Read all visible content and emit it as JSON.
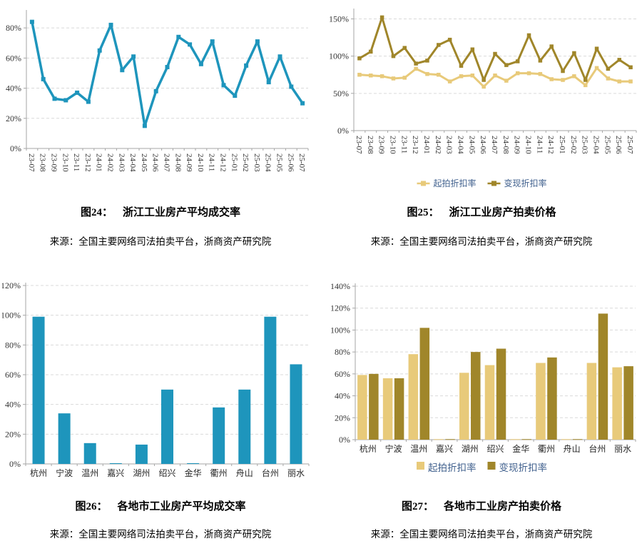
{
  "colors": {
    "blue": "#1e95bc",
    "light_gold": "#e8ca7a",
    "dark_gold": "#a0862a",
    "grid": "#d9d9d9",
    "axis": "#a6a6a6",
    "tick_text": "#333333",
    "legend_text": "#41618e"
  },
  "figures": [
    {
      "label": "图24：",
      "title": "浙江工业房产平均成交率",
      "source": "来源：全国主要网络司法拍卖平台，浙商资产研究院"
    },
    {
      "label": "图25：",
      "title": "浙江工业房产拍卖价格",
      "source": "来源：全国主要网络司法拍卖平台，浙商资产研究院"
    },
    {
      "label": "图26：",
      "title": "各地市工业房产平均成交率",
      "source": "来源：全国主要网络司法拍卖平台，浙商资产研究院"
    },
    {
      "label": "图27：",
      "title": "各地市工业房产拍卖价格",
      "source": "来源：全国主要网络司法拍卖平台，浙商资产研究院"
    }
  ],
  "chart_data": [
    {
      "id": "fig24",
      "type": "line",
      "title": "图24： 浙江工业房产平均成交率",
      "x": [
        "23-07",
        "23-08",
        "23-09",
        "23-10",
        "23-11",
        "23-12",
        "24-01",
        "24-02",
        "24-03",
        "24-04",
        "24-05",
        "24-06",
        "24-07",
        "24-08",
        "24-09",
        "24-10",
        "24-11",
        "24-12",
        "25-01",
        "25-02",
        "25-03",
        "25-04",
        "25-05",
        "25-06",
        "25-07"
      ],
      "series": [
        {
          "color_key": "blue",
          "values": [
            84,
            46,
            33,
            32,
            37,
            31,
            65,
            82,
            52,
            61,
            15,
            38,
            54,
            74,
            69,
            56,
            71,
            42,
            35,
            55,
            71,
            44,
            61,
            41,
            30
          ]
        }
      ],
      "ylim": [
        0,
        90
      ],
      "yticks": [
        0,
        20,
        40,
        60,
        80
      ],
      "grid": true,
      "legend": false
    },
    {
      "id": "fig25",
      "type": "line",
      "title": "图25： 浙江工业房产拍卖价格",
      "x": [
        "23-07",
        "23-08",
        "23-09",
        "23-10",
        "23-11",
        "23-12",
        "24-01",
        "24-02",
        "24-03",
        "24-04",
        "24-05",
        "24-06",
        "24-07",
        "24-08",
        "24-09",
        "24-10",
        "24-11",
        "24-12",
        "25-01",
        "25-02",
        "25-03",
        "25-04",
        "25-05",
        "25-06",
        "25-07"
      ],
      "series": [
        {
          "name": "起拍折扣率",
          "color_key": "light_gold",
          "values": [
            75,
            74,
            73,
            70,
            71,
            83,
            76,
            75,
            66,
            73,
            74,
            59,
            74,
            67,
            77,
            77,
            76,
            69,
            68,
            73,
            61,
            84,
            70,
            66,
            66
          ]
        },
        {
          "name": "变现折扣率",
          "color_key": "dark_gold",
          "values": [
            97,
            106,
            152,
            100,
            111,
            90,
            94,
            115,
            122,
            87,
            109,
            68,
            103,
            88,
            93,
            128,
            94,
            113,
            80,
            104,
            68,
            110,
            83,
            95,
            85
          ]
        }
      ],
      "ylim": [
        0,
        160
      ],
      "yticks": [
        0,
        50,
        100,
        150
      ],
      "grid": true,
      "legend": true,
      "legend_position": "bottom"
    },
    {
      "id": "fig26",
      "type": "bar",
      "title": "图26： 各地市工业房产平均成交率",
      "categories": [
        "杭州",
        "宁波",
        "温州",
        "嘉兴",
        "湖州",
        "绍兴",
        "金华",
        "衢州",
        "舟山",
        "台州",
        "丽水"
      ],
      "series": [
        {
          "color_key": "blue",
          "values": [
            99,
            34,
            14,
            0.5,
            13,
            50,
            0.5,
            38,
            50,
            99,
            67
          ]
        }
      ],
      "ylim": [
        0,
        120
      ],
      "yticks": [
        0,
        20,
        40,
        60,
        80,
        100,
        120
      ],
      "grid": true,
      "legend": false
    },
    {
      "id": "fig27",
      "type": "bar",
      "title": "图27： 各地市工业房产拍卖价格",
      "categories": [
        "杭州",
        "宁波",
        "温州",
        "嘉兴",
        "湖州",
        "绍兴",
        "金华",
        "衢州",
        "舟山",
        "台州",
        "丽水"
      ],
      "series": [
        {
          "name": "起拍折扣率",
          "color_key": "light_gold",
          "values": [
            59,
            56,
            78,
            0.5,
            61,
            68,
            0.5,
            70,
            0.5,
            70,
            66
          ]
        },
        {
          "name": "变现折扣率",
          "color_key": "dark_gold",
          "values": [
            60,
            56,
            102,
            0.5,
            80,
            83,
            0.5,
            75,
            0.5,
            115,
            67
          ]
        }
      ],
      "ylim": [
        0,
        140
      ],
      "yticks": [
        0,
        20,
        40,
        60,
        80,
        100,
        120,
        140
      ],
      "grid": true,
      "legend": true,
      "legend_position": "bottom"
    }
  ]
}
